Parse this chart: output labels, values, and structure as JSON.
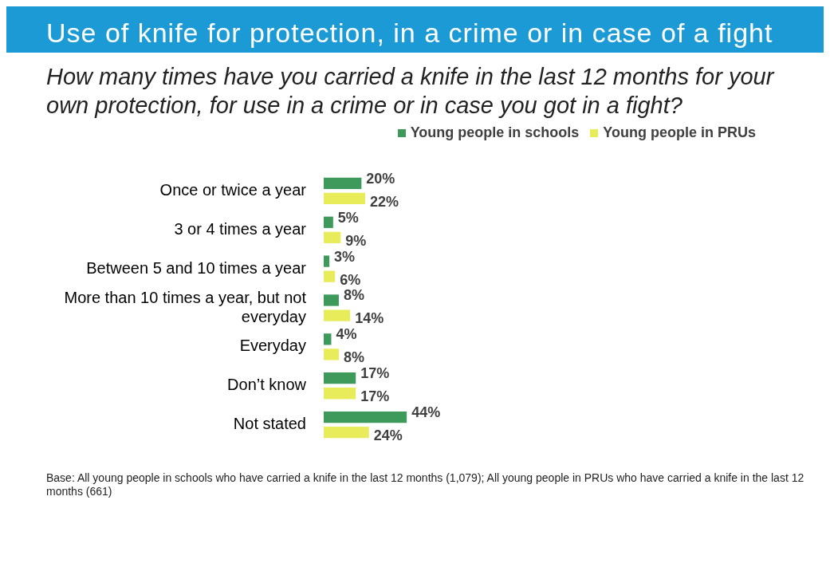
{
  "chart_data": {
    "type": "bar",
    "orientation": "horizontal",
    "title": "Use of knife for protection, in a crime or in case of a fight",
    "subtitle": "How many times have you carried a knife in the last 12 months for your own protection, for use in a crime or in case you got in a fight?",
    "categories": [
      "Once or twice a year",
      "3 or 4 times a year",
      "Between 5 and 10 times a year",
      "More than 10 times a year, but not everyday",
      "Everyday",
      "Don’t know",
      "Not stated"
    ],
    "series": [
      {
        "name": "Young people in schools",
        "color": "#3d9a5a",
        "values": [
          20,
          5,
          3,
          8,
          4,
          17,
          44
        ],
        "value_labels": [
          "20%",
          "5%",
          "3%",
          "8%",
          "4%",
          "17%",
          "44%"
        ]
      },
      {
        "name": "Young people in PRUs",
        "color": "#e8ec5a",
        "values": [
          22,
          9,
          6,
          14,
          8,
          17,
          24
        ],
        "value_labels": [
          "22%",
          "9%",
          "6%",
          "14%",
          "8%",
          "17%",
          "24%"
        ]
      }
    ],
    "legend": "top right",
    "annotations": [
      "Base: All young people in schools who have carried a knife in the last 12 months (1,079); All young people in PRUs who have carried a knife in the last 12 months (661)"
    ]
  }
}
